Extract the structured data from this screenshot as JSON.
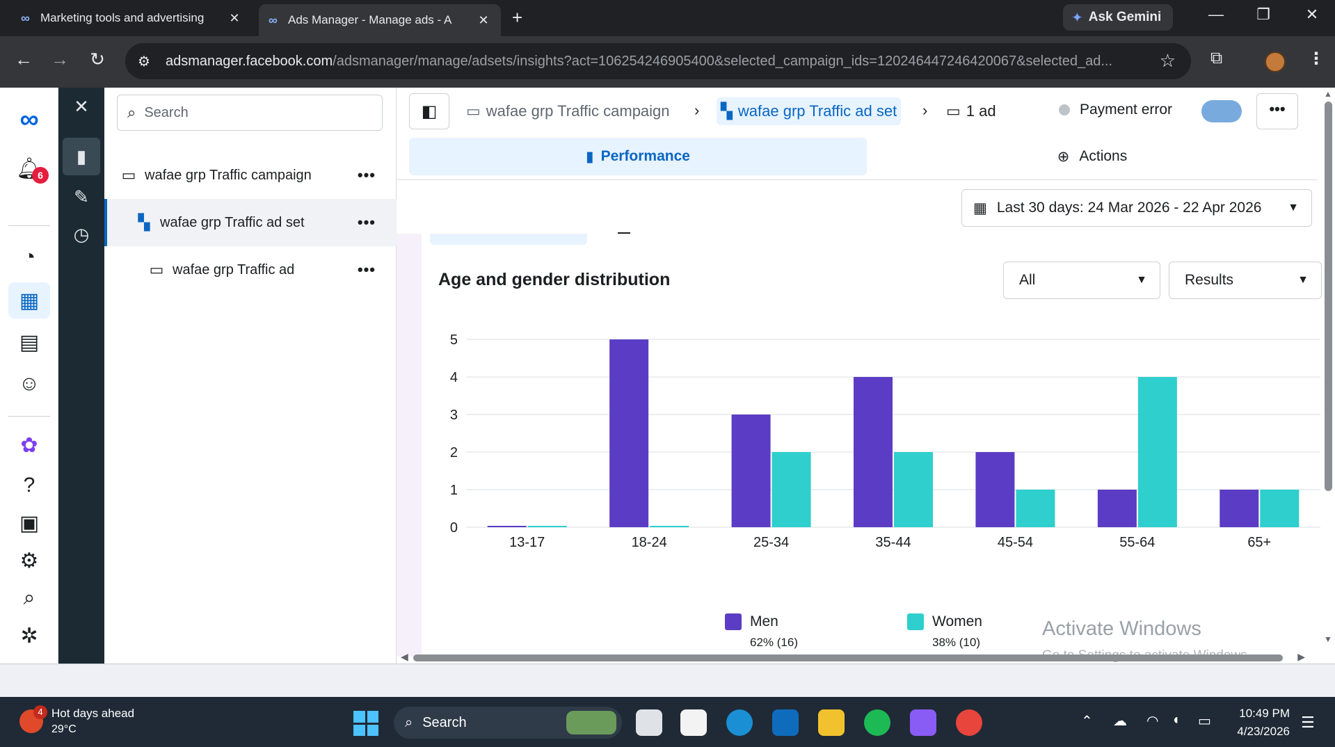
{
  "browser": {
    "tabs": [
      {
        "label": "Marketing tools and advertising",
        "icon": "meta-logo-icon"
      },
      {
        "label": "Ads Manager - Manage ads - A",
        "icon": "meta-logo-icon",
        "active": true
      }
    ],
    "new_tab": "+",
    "gemini_label": "Ask Gemini",
    "url_host": "adsmanager.facebook.com",
    "url_path": "/adsmanager/manage/adsets/insights?act=106254246905400&selected_campaign_ids=120246447246420067&selected_ad..."
  },
  "rail": {
    "notification_count": "6",
    "icons": [
      "meta-logo-icon",
      "bell-icon",
      "dashboard-icon",
      "table-icon",
      "pages-icon",
      "audience-icon",
      "flower-icon",
      "help-icon",
      "news-icon",
      "settings-icon",
      "search-icon",
      "bug-icon"
    ]
  },
  "tree": {
    "search_placeholder": "Search",
    "items": [
      {
        "label": "wafae grp Traffic campaign",
        "type": "campaign"
      },
      {
        "label": "wafae grp Traffic ad set",
        "type": "adset",
        "selected": true
      },
      {
        "label": "wafae grp Traffic ad",
        "type": "ad"
      }
    ],
    "more": "•••"
  },
  "header": {
    "breadcrumbs": [
      {
        "label": "wafae grp Traffic campaign"
      },
      {
        "label": "wafae grp Traffic ad set",
        "active": true
      },
      {
        "label": "1 ad"
      }
    ],
    "status": "Payment error",
    "more": "•••"
  },
  "tabs": {
    "performance": "Performance",
    "actions": "Actions"
  },
  "date_range": "Last 30 days: 24 Mar 2026 - 22 Apr 2026",
  "filters": {
    "audience": "All",
    "metric": "Results"
  },
  "chart_data": {
    "type": "bar",
    "title": "Age and gender distribution",
    "categories": [
      "13-17",
      "18-24",
      "25-34",
      "35-44",
      "45-54",
      "55-64",
      "65+"
    ],
    "series": [
      {
        "name": "Men",
        "color": "#5b3cc4",
        "values": [
          0,
          5,
          3,
          4,
          2,
          1,
          1
        ]
      },
      {
        "name": "Women",
        "color": "#2ecfcd",
        "values": [
          0,
          0,
          2,
          2,
          1,
          4,
          1
        ]
      }
    ],
    "yticks": [
      "0",
      "1",
      "2",
      "3",
      "4",
      "5"
    ],
    "ylim": [
      0,
      5
    ],
    "grid": true,
    "legend": [
      {
        "name": "Men",
        "share": "62% (16)"
      },
      {
        "name": "Women",
        "share": "38% (10)"
      }
    ]
  },
  "watermark": {
    "title": "Activate Windows",
    "subtitle": "Go to Settings to activate Windows."
  },
  "taskbar": {
    "weather_title": "Hot days ahead",
    "weather_temp": "29°C",
    "weather_badge": "4",
    "search_label": "Search",
    "time": "10:49 PM",
    "date": "4/23/2026"
  }
}
